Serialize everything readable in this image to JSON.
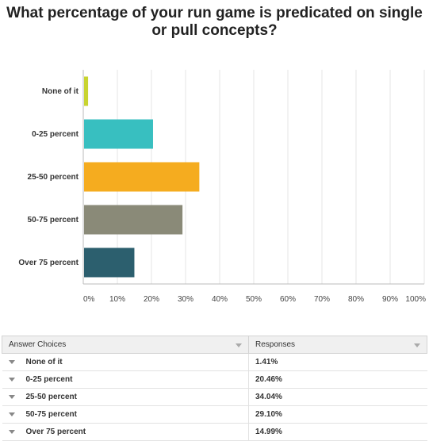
{
  "chart_data": {
    "type": "bar",
    "orientation": "horizontal",
    "title": "What percentage of your run game is predicated on single or pull concepts?",
    "categories": [
      "None of it",
      "0-25 percent",
      "25-50 percent",
      "50-75 percent",
      "Over 75 percent"
    ],
    "values": [
      1.41,
      20.46,
      34.04,
      29.1,
      14.99
    ],
    "colors": [
      "#c8d430",
      "#38bfc0",
      "#f5ac1f",
      "#8a8a78",
      "#2c5f6e"
    ],
    "xlim": [
      0,
      100
    ],
    "xticks": [
      "0%",
      "10%",
      "20%",
      "30%",
      "40%",
      "50%",
      "60%",
      "70%",
      "80%",
      "90%",
      "100%"
    ],
    "grid": true,
    "legend": "none"
  },
  "table": {
    "header": {
      "choices": "Answer Choices",
      "responses": "Responses"
    },
    "rows": [
      {
        "choice": "None of it",
        "response": "1.41%"
      },
      {
        "choice": "0-25 percent",
        "response": "20.46%"
      },
      {
        "choice": "25-50 percent",
        "response": "34.04%"
      },
      {
        "choice": "50-75 percent",
        "response": "29.10%"
      },
      {
        "choice": "Over 75 percent",
        "response": "14.99%"
      }
    ]
  }
}
